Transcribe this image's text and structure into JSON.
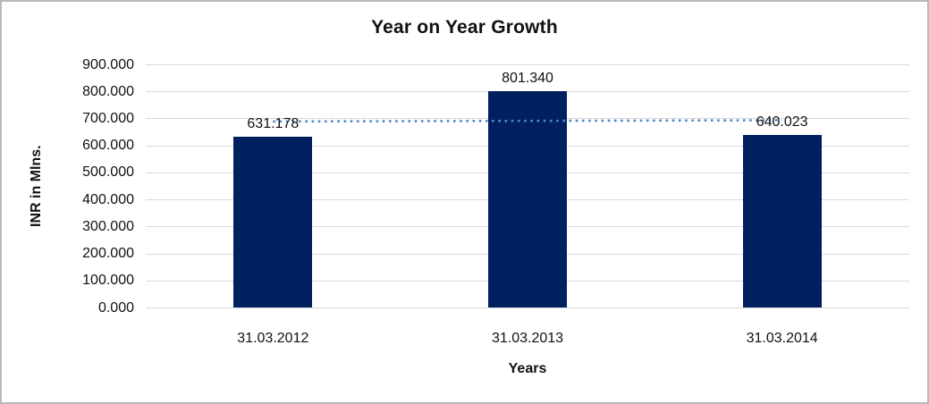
{
  "chart_data": {
    "type": "bar",
    "title": "Year on Year Growth",
    "xlabel": "Years",
    "ylabel": "INR in Mlns.",
    "categories": [
      "31.03.2012",
      "31.03.2013",
      "31.03.2014"
    ],
    "values": [
      631.178,
      801.34,
      640.023
    ],
    "data_labels": [
      "631.178",
      "801.340",
      "640.023"
    ],
    "ylim": [
      0,
      900
    ],
    "ytick_step": 100,
    "ytick_labels": [
      "0.000",
      "100.000",
      "200.000",
      "300.000",
      "400.000",
      "500.000",
      "600.000",
      "700.000",
      "800.000",
      "900.000"
    ],
    "grid": "horizontal",
    "legend": "none",
    "trendline": {
      "style": "dotted",
      "value": 690.85,
      "span": "first-category-center-to-last-category-center"
    }
  },
  "colors": {
    "bar": "#002060",
    "gridline": "#d9d9d9",
    "trendline": "#4e87c7",
    "text": "#111111",
    "background": "#ffffff",
    "frame_border": "#b9b9b9"
  }
}
